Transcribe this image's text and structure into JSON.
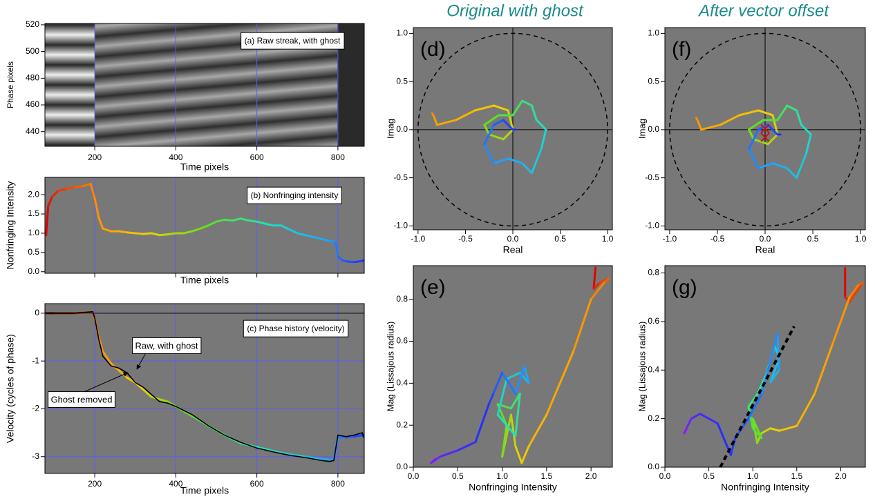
{
  "chart_data": [
    {
      "type": "image",
      "annotations": [
        "(a) Raw streak, with ghost"
      ],
      "xlabel": "Time pixels",
      "ylabel": "Phase pixels",
      "xlim": [
        77,
        865
      ],
      "ylim": [
        429,
        521
      ],
      "xticks": [
        200,
        400,
        600,
        800
      ],
      "yticks": [
        440,
        460,
        480,
        500,
        520
      ],
      "grid": "x",
      "grid_color": "#5a5aff",
      "background": "#2a2a2a"
    },
    {
      "type": "line",
      "annotations": [
        "(b) Nonfringing intensity"
      ],
      "xlabel": "Time pixels",
      "ylabel": "Nonfringing Intensity",
      "xlim": [
        77,
        865
      ],
      "ylim": [
        -0.04,
        2.45
      ],
      "xticks": [
        200,
        400,
        600,
        800
      ],
      "show_xtick_labels": false,
      "yticks": [
        {
          "value": 0,
          "label": "0.0"
        },
        0.5,
        {
          "value": 1,
          "label": "1.0"
        },
        1.5,
        {
          "value": 2,
          "label": "2.0"
        }
      ],
      "grid": "x",
      "grid_color": "#5a5aff",
      "background": "#787878",
      "x": [
        80,
        85,
        95,
        110,
        130,
        150,
        170,
        190,
        200,
        210,
        220,
        240,
        260,
        280,
        300,
        320,
        340,
        360,
        380,
        400,
        420,
        440,
        460,
        480,
        500,
        520,
        540,
        560,
        580,
        600,
        620,
        640,
        660,
        680,
        700,
        720,
        740,
        760,
        780,
        790,
        795,
        800,
        810,
        820,
        840,
        860,
        865
      ],
      "series": [
        {
          "values": [
            0.95,
            1.7,
            1.95,
            2.1,
            2.15,
            2.2,
            2.22,
            2.28,
            1.9,
            1.4,
            1.12,
            1.05,
            1.05,
            1.02,
            1.0,
            0.98,
            1.0,
            0.95,
            0.97,
            1.0,
            1.0,
            1.05,
            1.12,
            1.2,
            1.3,
            1.35,
            1.33,
            1.38,
            1.33,
            1.3,
            1.25,
            1.2,
            1.2,
            1.1,
            1.0,
            0.95,
            0.9,
            0.85,
            0.8,
            0.78,
            0.75,
            0.4,
            0.3,
            0.27,
            0.25,
            0.28,
            0.3
          ],
          "colormap": [
            "#e00000",
            "#ff8c00",
            "#f0d000",
            "#60e020",
            "#20e0c0",
            "#20a0ff",
            "#2030ff"
          ]
        }
      ]
    },
    {
      "type": "line",
      "annotations": [
        "(c) Phase history (velocity)"
      ],
      "xlabel": "Time pixels",
      "ylabel": "Velocity (cycles of phase)",
      "xlim": [
        77,
        865
      ],
      "ylim": [
        -3.35,
        0.2
      ],
      "xticks": [
        200,
        400,
        600,
        800
      ],
      "yticks": [
        0,
        -1,
        -2,
        -3
      ],
      "grid": "both",
      "grid_color": "#5a5aff",
      "background": "#787878",
      "zero_line": true,
      "x": [
        80,
        100,
        150,
        195,
        200,
        210,
        220,
        240,
        260,
        280,
        300,
        320,
        340,
        360,
        380,
        400,
        440,
        480,
        520,
        560,
        600,
        640,
        680,
        720,
        760,
        780,
        790,
        800,
        820,
        840,
        860,
        865
      ],
      "series": [
        {
          "name": "Ghost removed",
          "values": [
            0,
            0,
            0,
            0.02,
            -0.1,
            -0.5,
            -0.8,
            -1.05,
            -1.2,
            -1.35,
            -1.45,
            -1.6,
            -1.75,
            -1.8,
            -1.85,
            -1.95,
            -2.15,
            -2.35,
            -2.55,
            -2.72,
            -2.8,
            -2.88,
            -2.95,
            -3.0,
            -3.05,
            -3.07,
            -3.05,
            -2.6,
            -2.6,
            -2.58,
            -2.55,
            -2.6
          ],
          "colormap": [
            "#600000",
            "#ff8c00",
            "#f0d000",
            "#60e020",
            "#20e0c0",
            "#20a0ff",
            "#2030ff"
          ]
        },
        {
          "name": "Raw, with ghost",
          "color": "#000000",
          "values": [
            0,
            0,
            0,
            0.03,
            -0.1,
            -0.55,
            -0.9,
            -1.1,
            -1.15,
            -1.25,
            -1.45,
            -1.55,
            -1.7,
            -1.85,
            -1.88,
            -1.95,
            -2.12,
            -2.35,
            -2.55,
            -2.7,
            -2.82,
            -2.9,
            -2.97,
            -3.02,
            -3.08,
            -3.1,
            -3.08,
            -2.55,
            -2.58,
            -2.55,
            -2.5,
            -2.6
          ]
        }
      ]
    },
    {
      "type": "line",
      "title": "Original with ghost",
      "annotations": [
        "(d)"
      ],
      "xlabel": "Real",
      "ylabel": "Imag",
      "xlim": [
        -1.05,
        1.05
      ],
      "ylim": [
        -1.04,
        1.06
      ],
      "xticks": [
        {
          "value": -1,
          "label": "-1.0"
        },
        -0.5,
        {
          "value": 0,
          "label": "0.0"
        },
        0.5,
        {
          "value": 1,
          "label": "1.0"
        }
      ],
      "yticks": [
        {
          "value": -1,
          "label": "-1.0"
        },
        -0.5,
        {
          "value": 0,
          "label": "0.0"
        },
        0.5,
        {
          "value": 1,
          "label": "1.0"
        }
      ],
      "grid": false,
      "background": "#787878",
      "unit_circle": true,
      "axes_cross": true,
      "series": [
        {
          "x": [
            -0.85,
            -0.83,
            -0.8,
            -0.6,
            -0.4,
            -0.2,
            -0.05,
            0.0,
            -0.1,
            -0.25,
            -0.3,
            -0.15,
            0.0,
            0.1,
            0.2,
            0.25,
            0.35,
            0.3,
            0.2,
            0.1,
            -0.05,
            -0.2,
            -0.3,
            -0.2,
            -0.1,
            0.0,
            0.03
          ],
          "y": [
            0.17,
            0.13,
            0.05,
            0.1,
            0.2,
            0.25,
            0.2,
            0.0,
            -0.1,
            -0.05,
            0.05,
            0.15,
            0.15,
            0.3,
            0.25,
            0.1,
            0.0,
            -0.2,
            -0.45,
            -0.35,
            -0.3,
            -0.35,
            -0.15,
            0.05,
            0.1,
            0.0,
            0.0
          ],
          "colormap": [
            "#ff8c00",
            "#f0d000",
            "#60e020",
            "#20e0c0",
            "#20a0ff",
            "#2030ff"
          ]
        }
      ]
    },
    {
      "type": "line",
      "annotations": [
        "(e)"
      ],
      "xlabel": "Nonfringing Intensity",
      "ylabel": "Mag (Lissajous radius)",
      "xlim": [
        0,
        2.24
      ],
      "ylim": [
        0,
        0.96
      ],
      "xticks": [
        {
          "value": 0,
          "label": "0.0"
        },
        0.5,
        {
          "value": 1,
          "label": "1.0"
        },
        1.5,
        {
          "value": 2,
          "label": "2.0"
        }
      ],
      "yticks": [
        {
          "value": 0,
          "label": "0.0"
        },
        0.2,
        0.4,
        0.6,
        0.8
      ],
      "grid": false,
      "background": "#787878",
      "series": [
        {
          "x": [
            2.05,
            2.03,
            2.1,
            2.2,
            2.15,
            2.0,
            1.8,
            1.5,
            1.3,
            1.22,
            1.15,
            1.1,
            1.0,
            1.05,
            0.95,
            1.1,
            1.2,
            1.15,
            0.95,
            1.05,
            1.2,
            1.3,
            1.25,
            1.15,
            1.0,
            0.9,
            0.85,
            0.7,
            0.5,
            0.3,
            0.2,
            0.25
          ],
          "y": [
            0.95,
            0.85,
            0.88,
            0.9,
            0.88,
            0.8,
            0.55,
            0.25,
            0.1,
            0.02,
            0.1,
            0.25,
            0.05,
            0.2,
            0.3,
            0.28,
            0.35,
            0.15,
            0.25,
            0.42,
            0.45,
            0.4,
            0.48,
            0.35,
            0.45,
            0.35,
            0.3,
            0.12,
            0.08,
            0.05,
            0.02,
            0.04
          ],
          "colormap": [
            "#e00000",
            "#ff8c00",
            "#f0d000",
            "#60e020",
            "#20e0c0",
            "#20a0ff",
            "#2030ff",
            "#8020ff"
          ]
        }
      ]
    },
    {
      "type": "line",
      "title": "After vector offset",
      "annotations": [
        "(f)"
      ],
      "xlabel": "Real",
      "ylabel": "Imag",
      "xlim": [
        -1.05,
        1.05
      ],
      "ylim": [
        -1.04,
        1.06
      ],
      "xticks": [
        {
          "value": -1,
          "label": "-1.0"
        },
        -0.5,
        {
          "value": 0,
          "label": "0.0"
        },
        0.5,
        {
          "value": 1,
          "label": "1.0"
        }
      ],
      "yticks": [
        {
          "value": -1,
          "label": "-1.0"
        },
        -0.5,
        {
          "value": 0,
          "label": "0.0"
        },
        0.5,
        {
          "value": 1,
          "label": "1.0"
        }
      ],
      "grid": false,
      "background": "#787878",
      "unit_circle": true,
      "axes_cross": true,
      "markers": {
        "x": [
          0,
          0
        ],
        "y": [
          0.01,
          -0.08
        ],
        "color": "#d01010"
      },
      "series": [
        {
          "x": [
            -0.72,
            -0.7,
            -0.67,
            -0.47,
            -0.27,
            -0.07,
            0.08,
            0.13,
            0.03,
            -0.12,
            -0.17,
            -0.02,
            0.13,
            0.23,
            0.33,
            0.38,
            0.48,
            0.43,
            0.33,
            0.23,
            0.08,
            -0.07,
            -0.17,
            -0.07,
            0.03,
            0.13,
            0.16
          ],
          "y": [
            0.12,
            0.08,
            0.0,
            0.05,
            0.15,
            0.2,
            0.15,
            -0.05,
            -0.15,
            -0.1,
            0.0,
            0.1,
            0.1,
            0.25,
            0.2,
            0.05,
            -0.05,
            -0.25,
            -0.5,
            -0.4,
            -0.35,
            -0.4,
            -0.2,
            0.0,
            0.05,
            -0.05,
            -0.05
          ],
          "colormap": [
            "#ff8c00",
            "#f0d000",
            "#60e020",
            "#20e0c0",
            "#20a0ff",
            "#2030ff"
          ]
        }
      ]
    },
    {
      "type": "line",
      "annotations": [
        "(g)"
      ],
      "xlabel": "Nonfringing Intensity",
      "ylabel": "Mag (Lissajous radius)",
      "xlim": [
        0,
        2.28
      ],
      "ylim": [
        0,
        0.83
      ],
      "xticks": [
        {
          "value": 0,
          "label": "0.0"
        },
        0.5,
        {
          "value": 1,
          "label": "1.0"
        },
        1.5,
        {
          "value": 2,
          "label": "2.0"
        }
      ],
      "yticks": [
        {
          "value": 0,
          "label": "0.0"
        },
        0.2,
        0.4,
        0.6,
        0.8
      ],
      "grid": false,
      "background": "#787878",
      "fit_line": {
        "x": [
          0.63,
          1.47
        ],
        "y": [
          0,
          0.58
        ],
        "color": "#000000"
      },
      "series": [
        {
          "x": [
            2.05,
            2.05,
            2.1,
            2.25,
            2.2,
            2.1,
            1.9,
            1.7,
            1.5,
            1.3,
            1.2,
            1.1,
            1.05,
            1.0,
            1.1,
            1.0,
            0.95,
            1.05,
            1.15,
            1.25,
            1.3,
            1.2,
            1.3,
            1.28,
            1.1,
            0.95,
            0.8,
            0.75,
            0.6,
            0.4,
            0.3,
            0.22,
            0.25
          ],
          "y": [
            0.82,
            0.7,
            0.68,
            0.76,
            0.75,
            0.7,
            0.5,
            0.3,
            0.17,
            0.15,
            0.16,
            0.14,
            0.1,
            0.2,
            0.12,
            0.16,
            0.25,
            0.3,
            0.38,
            0.5,
            0.45,
            0.35,
            0.4,
            0.55,
            0.3,
            0.2,
            0.12,
            0.05,
            0.18,
            0.22,
            0.2,
            0.14,
            0.16
          ],
          "colormap": [
            "#e00000",
            "#ff8c00",
            "#f0d000",
            "#60e020",
            "#20e0c0",
            "#20a0ff",
            "#2030ff",
            "#8020ff"
          ]
        }
      ]
    }
  ]
}
